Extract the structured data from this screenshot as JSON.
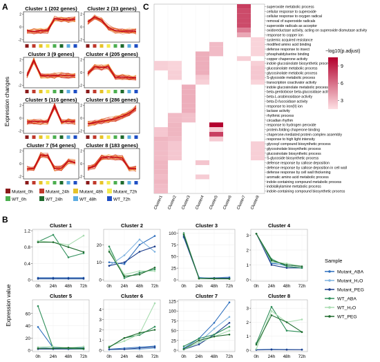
{
  "panel_labels": {
    "A": "A",
    "B": "B",
    "C": "C"
  },
  "colors": {
    "mutant_0h": "#8b1a1a",
    "mutant_24h": "#c0392b",
    "mutant_48h": "#e6c229",
    "mutant_72h": "#f2ea4e",
    "wt_0h": "#4caf50",
    "wt_24h": "#1f6b2e",
    "wt_48h": "#5dade2",
    "wt_72h": "#1f4fc4",
    "profile_line": "#d42a1a",
    "profile_light": "#f4a020",
    "heat_high": "#b3002d",
    "heat_low": "#fde0e4",
    "mutant_aba": "#2e6fbd",
    "mutant_h2o": "#7fb3e0",
    "mutant_peg": "#1c3d8c",
    "wt_aba": "#2f8f5a",
    "wt_h2o": "#a8dcb0",
    "wt_peg": "#1f6b2e"
  },
  "panel_a": {
    "ylabel": "Expression changes",
    "clusters": [
      {
        "title": "Cluster 1 (202 genes)",
        "shape": [
          -0.6,
          -0.7,
          -0.6,
          -0.6,
          1.3,
          1.2,
          1.1,
          1.2
        ]
      },
      {
        "title": "Cluster 2 (33 genes)",
        "shape": [
          0.8,
          1.6,
          1.1,
          -0.1,
          -0.6,
          -0.7,
          -0.6,
          -0.7
        ]
      },
      {
        "title": "Cluster 3 (9 genes)",
        "shape": [
          -0.5,
          1.9,
          -0.5,
          -0.5,
          -0.5,
          -0.4,
          -0.5,
          -0.5
        ]
      },
      {
        "title": "Cluster 4 (205 genes)",
        "shape": [
          -0.2,
          0.9,
          0.8,
          0.9,
          -0.8,
          -0.7,
          -0.8,
          -0.8
        ]
      },
      {
        "title": "Cluster 5 (116 genes)",
        "shape": [
          -0.6,
          -0.5,
          -0.6,
          -0.6,
          1.9,
          -0.6,
          -0.5,
          -0.6
        ]
      },
      {
        "title": "Cluster 6 (286 genes)",
        "shape": [
          -0.9,
          -0.7,
          -0.5,
          -0.3,
          -0.1,
          0.3,
          0.8,
          1.6
        ]
      },
      {
        "title": "Cluster 7 (54 genes)",
        "shape": [
          -0.8,
          -0.7,
          1.4,
          1.3,
          -0.8,
          -0.7,
          0.4,
          0.2
        ]
      },
      {
        "title": "Cluster 8 (183 genes)",
        "shape": [
          -0.7,
          -0.4,
          1.0,
          1.1,
          1.0,
          0.9,
          -0.8,
          -0.8
        ]
      }
    ],
    "legend": [
      {
        "label": "Mutant_0h",
        "color": "#8b1a1a"
      },
      {
        "label": "Mutant_24h",
        "color": "#c0392b"
      },
      {
        "label": "Mutant_48h",
        "color": "#e6c229"
      },
      {
        "label": "Mutant_72h",
        "color": "#f2ea4e"
      },
      {
        "label": "WT_0h",
        "color": "#4caf50"
      },
      {
        "label": "WT_24h",
        "color": "#1f6b2e"
      },
      {
        "label": "WT_48h",
        "color": "#5dade2"
      },
      {
        "label": "WT_72h",
        "color": "#1f4fc4"
      }
    ]
  },
  "chart_data": [
    {
      "type": "heatmap",
      "panel": "C",
      "colorbar_title": "−log10(p.adjust)",
      "colorbar_ticks": [
        9,
        6,
        3
      ],
      "value_range": [
        1.5,
        10.5
      ],
      "columns": [
        "Cluster1",
        "Cluster2",
        "Cluster3",
        "Cluster4",
        "Cluster5",
        "Cluster6",
        "Cluster7",
        "Cluster8"
      ],
      "rows": [
        "superoxide metabolic process",
        "cellular response to superoxide",
        "cellular response to oxygen radical",
        "removal of superoxide radicals",
        "superoxide radicals as acceptor",
        "oxidoreductase activity, acting on superoxide dismutase activity",
        "response to copper ion",
        "systemic acquired resistance",
        "modified amino acid binding",
        "defense response to insect",
        "phosphatidylserine binding",
        "copper chaperone activity",
        "indole glucosinolate biosynthetic process",
        "glucosinolate metabolic process",
        "glycosinolate metabolic process",
        "S-glycoside metabolic process",
        "transcription coactivator activity",
        "indole glucosinolate metabolic process",
        "beta-gentiobiose beta-glucosidase activity",
        "beta-L-arabinosidase activity",
        "beta-D-fucosidase activity",
        "response to iron(II) ion",
        "lactase activity",
        "rhythmic process",
        "circadian rhythm",
        "response to hydrogen peroxide",
        "protein-folding chaperone binding",
        "chaperone-mediated protein complex assembly",
        "response to high light intensity",
        "glycosyl compound biosynthetic process",
        "glycosinolate biosynthetic process",
        "glucosinolate biosynthetic process",
        "S-glycoside biosynthetic process",
        "defense response by callose deposition",
        "defense response by callose deposition in cell wall",
        "defense response by cell wall thickening",
        "aromatic amino acid metabolic process",
        "indole-containing compound metabolic process",
        "indolalkylamine metabolic process",
        "indole-containing compound biosynthetic process"
      ],
      "cells": [
        [
          6,
          0,
          8.0
        ],
        [
          6,
          1,
          7.5
        ],
        [
          6,
          2,
          7.5
        ],
        [
          6,
          3,
          7.5
        ],
        [
          6,
          4,
          7.5
        ],
        [
          6,
          5,
          5.5
        ],
        [
          6,
          6,
          3.8
        ],
        [
          7,
          7,
          2.0
        ],
        [
          7,
          8,
          2.0
        ],
        [
          7,
          9,
          2.0
        ],
        [
          7,
          10,
          2.0
        ],
        [
          6,
          11,
          2.2
        ],
        [
          4,
          8,
          3.0
        ],
        [
          4,
          9,
          3.0
        ],
        [
          4,
          10,
          3.0
        ],
        [
          3,
          10,
          3.5
        ],
        [
          3,
          11,
          3.5
        ],
        [
          3,
          12,
          3.5
        ],
        [
          3,
          13,
          3.5
        ],
        [
          3,
          14,
          3.5
        ],
        [
          3,
          15,
          2.5
        ],
        [
          3,
          16,
          2.2
        ],
        [
          1,
          12,
          2.0
        ],
        [
          1,
          13,
          2.0
        ],
        [
          1,
          14,
          2.2
        ],
        [
          1,
          15,
          2.2
        ],
        [
          0,
          12,
          2.2
        ],
        [
          0,
          13,
          2.2
        ],
        [
          7,
          12,
          2.2
        ],
        [
          7,
          13,
          2.5
        ],
        [
          7,
          14,
          2.5
        ],
        [
          7,
          15,
          2.5
        ],
        [
          7,
          16,
          2.0
        ],
        [
          2,
          17,
          3.5
        ],
        [
          2,
          18,
          3.5
        ],
        [
          2,
          19,
          3.5
        ],
        [
          2,
          20,
          3.5
        ],
        [
          2,
          21,
          3.5
        ],
        [
          2,
          22,
          3.5
        ],
        [
          2,
          23,
          2.8
        ],
        [
          2,
          24,
          2.8
        ],
        [
          1,
          23,
          3.0
        ],
        [
          1,
          24,
          3.0
        ],
        [
          1,
          25,
          3.2
        ],
        [
          1,
          26,
          3.2
        ],
        [
          1,
          27,
          3.2
        ],
        [
          1,
          28,
          3.0
        ],
        [
          1,
          29,
          2.5
        ],
        [
          1,
          30,
          2.5
        ],
        [
          1,
          31,
          2.5
        ],
        [
          1,
          32,
          2.5
        ],
        [
          4,
          25,
          10.5
        ],
        [
          4,
          26,
          2.4
        ],
        [
          4,
          27,
          8.0
        ],
        [
          4,
          28,
          2.4
        ],
        [
          0,
          26,
          2.5
        ],
        [
          0,
          27,
          2.5
        ],
        [
          0,
          28,
          3.2
        ],
        [
          0,
          29,
          3.0
        ],
        [
          0,
          30,
          3.0
        ],
        [
          0,
          31,
          3.0
        ],
        [
          0,
          32,
          3.0
        ],
        [
          0,
          33,
          3.2
        ],
        [
          0,
          34,
          3.2
        ],
        [
          0,
          35,
          3.2
        ],
        [
          0,
          36,
          3.0
        ],
        [
          0,
          37,
          3.2
        ],
        [
          0,
          38,
          3.0
        ],
        [
          0,
          39,
          3.0
        ],
        [
          3,
          33,
          2.6
        ],
        [
          3,
          36,
          2.3
        ],
        [
          7,
          29,
          2.2
        ],
        [
          7,
          30,
          2.2
        ],
        [
          7,
          31,
          2.2
        ],
        [
          7,
          32,
          2.2
        ]
      ]
    },
    {
      "type": "line",
      "panel": "B",
      "ylabel": "Expression value",
      "categories": [
        "0h",
        "24h",
        "48h",
        "72h"
      ],
      "legend_title": "Sample",
      "series_names": [
        "Mutant_ABA",
        "Mutant_H₂O",
        "Mutant_PEG",
        "WT_ABA",
        "WT_H₂O",
        "WT_PEG"
      ],
      "series_colors": [
        "#2e6fbd",
        "#7fb3e0",
        "#1c3d8c",
        "#2f8f5a",
        "#a8dcb0",
        "#1f6b2e"
      ],
      "charts": [
        {
          "title": "Cluster 1",
          "ylim": [
            0,
            1.2
          ],
          "yticks": [
            0,
            0.4,
            0.8,
            1.2
          ],
          "series": [
            [
              0.05,
              0.05,
              0.05,
              0.05
            ],
            [
              0.02,
              0.02,
              0.02,
              0.02
            ],
            [
              0.03,
              0.03,
              0.03,
              0.03
            ],
            [
              0.93,
              1.1,
              0.55,
              0.65
            ],
            [
              0.95,
              0.92,
              0.85,
              1.08
            ],
            [
              0.92,
              0.92,
              0.8,
              0.68
            ]
          ]
        },
        {
          "title": "Cluster 2",
          "ylim": [
            0,
            28
          ],
          "yticks": [
            0,
            10,
            20
          ],
          "series": [
            [
              10,
              9,
              20,
              25
            ],
            [
              8,
              14,
              23,
              16
            ],
            [
              8,
              10,
              16,
              19
            ],
            [
              19,
              1,
              4,
              6
            ],
            [
              17,
              3,
              5,
              5
            ],
            [
              16,
              2,
              3,
              7
            ]
          ]
        },
        {
          "title": "Cluster 3",
          "ylim": [
            0,
            105
          ],
          "yticks": [
            0,
            25,
            50,
            75,
            100
          ],
          "series": [
            [
              95,
              5,
              3,
              3
            ],
            [
              90,
              4,
              4,
              6
            ],
            [
              92,
              3,
              4,
              4
            ],
            [
              100,
              3,
              3,
              2
            ],
            [
              98,
              2,
              2,
              2
            ],
            [
              97,
              3,
              2,
              2
            ]
          ]
        },
        {
          "title": "Cluster 4",
          "ylim": [
            0,
            3.3
          ],
          "yticks": [
            0,
            1,
            2,
            3
          ],
          "series": [
            [
              3.1,
              1.1,
              1.0,
              0.9
            ],
            [
              3.1,
              1.2,
              0.9,
              0.8
            ],
            [
              3.1,
              1.0,
              0.8,
              0.8
            ],
            [
              3.1,
              1.4,
              0.9,
              0.8
            ],
            [
              3.1,
              1.2,
              1.1,
              0.9
            ],
            [
              3.1,
              1.3,
              1.0,
              0.9
            ]
          ]
        },
        {
          "title": "Cluster 5",
          "ylim": [
            0,
            80
          ],
          "yticks": [
            0,
            20,
            40,
            60
          ],
          "series": [
            [
              38,
              4,
              4,
              4
            ],
            [
              5,
              3,
              2,
              3
            ],
            [
              2,
              2,
              2,
              2
            ],
            [
              72,
              3,
              3,
              2
            ],
            [
              5,
              6,
              4,
              6
            ],
            [
              3,
              3,
              4,
              3
            ]
          ]
        },
        {
          "title": "Cluster 6",
          "ylim": [
            0,
            4.8
          ],
          "yticks": [
            0,
            1,
            2,
            3,
            4
          ],
          "series": [
            [
              0.1,
              0.2,
              0.3,
              0.4
            ],
            [
              0.05,
              0.1,
              0.1,
              0.2
            ],
            [
              0.1,
              0.1,
              0.2,
              0.3
            ],
            [
              0.3,
              1.2,
              1.5,
              2.3
            ],
            [
              0.4,
              0.9,
              1.6,
              4.6
            ],
            [
              0.3,
              1.2,
              1.7,
              2.0
            ]
          ]
        },
        {
          "title": "Cluster 7",
          "ylim": [
            0,
            125
          ],
          "yticks": [
            0,
            25,
            50,
            75,
            100,
            125
          ],
          "series": [
            [
              5,
              30,
              70,
              122
            ],
            [
              3,
              20,
              55,
              85
            ],
            [
              2,
              15,
              40,
              70
            ],
            [
              10,
              30,
              40,
              60
            ],
            [
              2,
              20,
              35,
              50
            ],
            [
              3,
              25,
              35,
              40
            ]
          ]
        },
        {
          "title": "Cluster 8",
          "ylim": [
            0,
            3.5
          ],
          "yticks": [
            0,
            1,
            2,
            3
          ],
          "series": [
            [
              0.05,
              0.05,
              0.05,
              0.05
            ],
            [
              0.05,
              0.08,
              0.06,
              0.05
            ],
            [
              0.03,
              0.05,
              0.04,
              0.04
            ],
            [
              0.5,
              3.1,
              1.4,
              1.3
            ],
            [
              0.1,
              2.8,
              2.0,
              2.2
            ],
            [
              0.4,
              2.5,
              2.0,
              1.3
            ]
          ]
        }
      ]
    }
  ]
}
